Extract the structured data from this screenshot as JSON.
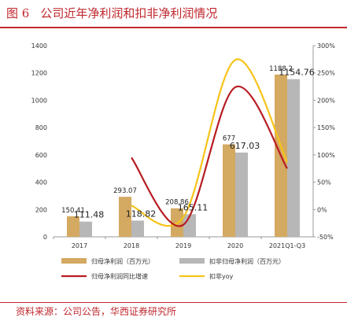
{
  "caption": {
    "figure_label": "图 6",
    "title": "公司近年净利润和扣非净利润情况"
  },
  "source_note": "资料来源：公司公告，华西证券研究所",
  "chart_data": {
    "type": "bar",
    "categories": [
      "2017",
      "2018",
      "2019",
      "2020",
      "2021Q1-Q3"
    ],
    "series": [
      {
        "name": "归母净利润（百万元）",
        "kind": "bar",
        "axis": "left",
        "color": "#d4a961",
        "values": [
          150.41,
          293.07,
          208.86,
          677,
          1188.2
        ],
        "labels": [
          "150.41",
          "293.07",
          "208.86",
          "677",
          "1188.2"
        ]
      },
      {
        "name": "扣非归母净利润（百万元）",
        "kind": "bar",
        "axis": "left",
        "color": "#b7b7b7",
        "values": [
          111.48,
          118.82,
          165.11,
          617.03,
          1154.76
        ],
        "labels": [
          "111.48",
          "118.82",
          "165.11",
          "617.03",
          "1154.76"
        ]
      },
      {
        "name": "归母净利润同比增速",
        "kind": "line",
        "axis": "right",
        "color": "#b81c22",
        "values": [
          null,
          95,
          -28,
          224,
          75
        ]
      },
      {
        "name": "扣非yoy",
        "kind": "line",
        "axis": "right",
        "color": "#f7c31a",
        "values": [
          null,
          7,
          -14,
          274,
          87
        ]
      }
    ],
    "y_left": {
      "min": 0,
      "max": 1400,
      "ticks": [
        "0",
        "200",
        "400",
        "600",
        "800",
        "1000",
        "1200",
        "1400"
      ]
    },
    "y_right": {
      "min": -50,
      "max": 300,
      "ticks": [
        "-50%",
        "0%",
        "50%",
        "100%",
        "150%",
        "200%",
        "250%",
        "300%"
      ]
    },
    "grid": false,
    "legend_position": "bottom"
  }
}
